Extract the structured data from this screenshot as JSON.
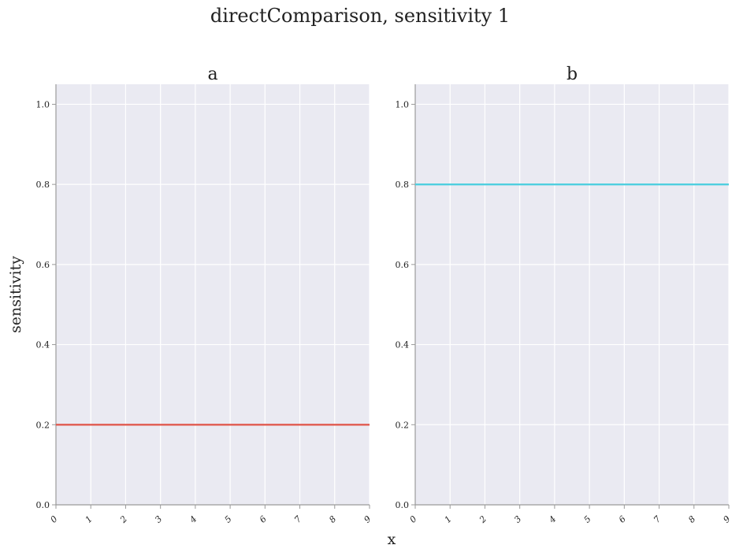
{
  "figure": {
    "title": "directComparison, sensitivity 1",
    "ylabel": "sensitivity",
    "xlabel": "x",
    "background_color": "#eaeaf2",
    "grid_color": "#ffffff",
    "spine_color": "#999999"
  },
  "chart_data": [
    {
      "type": "line",
      "title": "a",
      "x": [
        0,
        1,
        2,
        3,
        4,
        5,
        6,
        7,
        8,
        9
      ],
      "series": [
        {
          "values": [
            0.2,
            0.2,
            0.2,
            0.2,
            0.2,
            0.2,
            0.2,
            0.2,
            0.2,
            0.2
          ],
          "color": "#e05a4f"
        }
      ],
      "xlim": [
        0,
        9
      ],
      "ylim": [
        0,
        1.05
      ],
      "xticks": [
        "0",
        "1",
        "2",
        "3",
        "4",
        "5",
        "6",
        "7",
        "8",
        "9"
      ],
      "yticks": [
        "0.0",
        "0.2",
        "0.4",
        "0.6",
        "0.8",
        "1.0"
      ],
      "grid": true
    },
    {
      "type": "line",
      "title": "b",
      "x": [
        0,
        1,
        2,
        3,
        4,
        5,
        6,
        7,
        8,
        9
      ],
      "series": [
        {
          "values": [
            0.8,
            0.8,
            0.8,
            0.8,
            0.8,
            0.8,
            0.8,
            0.8,
            0.8,
            0.8
          ],
          "color": "#4fcfdf"
        }
      ],
      "xlim": [
        0,
        9
      ],
      "ylim": [
        0,
        1.05
      ],
      "xticks": [
        "0",
        "1",
        "2",
        "3",
        "4",
        "5",
        "6",
        "7",
        "8",
        "9"
      ],
      "yticks": [
        "0.0",
        "0.2",
        "0.4",
        "0.6",
        "0.8",
        "1.0"
      ],
      "grid": true
    }
  ]
}
